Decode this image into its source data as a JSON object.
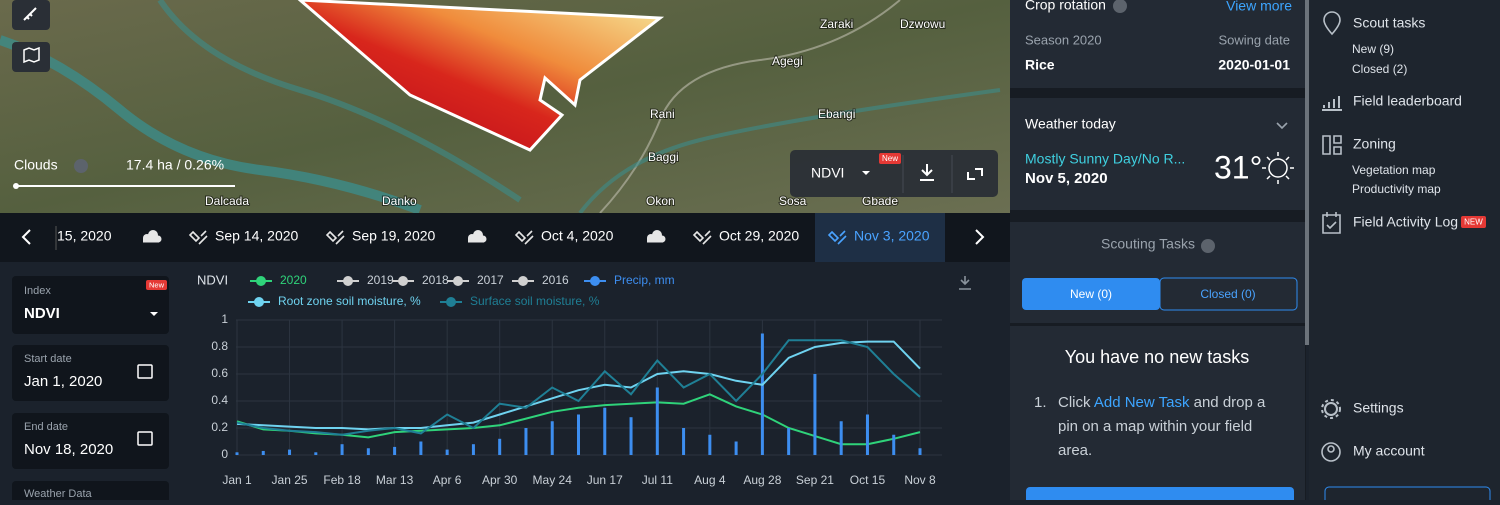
{
  "map": {
    "labels": [
      "Zaraki",
      "Dzwowu",
      "Agegi",
      "Rani",
      "Ebangi",
      "Baggi",
      "Okon",
      "Sosa",
      "Gbade",
      "Dalcada",
      "Danko"
    ],
    "clouds_label": "Clouds",
    "area": "17.4 ha / 0.26%",
    "layer": "NDVI",
    "layer_badge": "New"
  },
  "timeline": {
    "dates": [
      "15, 2020",
      "Sep 14, 2020",
      "Sep 19, 2020",
      "Oct 4, 2020",
      "Oct 29, 2020",
      "Nov 3, 2020"
    ]
  },
  "filters": {
    "index_label": "Index",
    "index_value": "NDVI",
    "index_badge": "New",
    "start_label": "Start date",
    "start_value": "Jan 1, 2020",
    "end_label": "End date",
    "end_value": "Nov 18, 2020",
    "weather_label": "Weather Data"
  },
  "chart_data": {
    "type": "combo",
    "title": "NDVI",
    "categories": [
      "Jan 1",
      null,
      "Jan 25",
      null,
      "Feb 18",
      null,
      "Mar 13",
      null,
      "Apr 6",
      null,
      "Apr 30",
      null,
      "May 24",
      null,
      "Jun 17",
      null,
      "Jul 11",
      null,
      "Aug 4",
      null,
      "Aug 28",
      null,
      "Sep 21",
      null,
      "Oct 15",
      null,
      "Nov 8"
    ],
    "ylim": [
      0,
      1
    ],
    "yticks": [
      0,
      0.2,
      0.4,
      0.6,
      0.8,
      1
    ],
    "grid": true,
    "series": [
      {
        "name": "2020",
        "type": "line",
        "color": "#2fd37a",
        "values": [
          0.25,
          0.19,
          0.18,
          0.16,
          0.15,
          0.13,
          0.17,
          0.18,
          0.19,
          0.2,
          0.22,
          0.27,
          0.32,
          0.35,
          0.37,
          0.38,
          0.39,
          0.38,
          0.45,
          0.36,
          0.3,
          0.2,
          0.14,
          0.08,
          0.08,
          0.12,
          0.17
        ]
      },
      {
        "name": "Precip, mm",
        "type": "bar",
        "color": "#3d8ef0",
        "values": [
          0.02,
          0.03,
          0.04,
          0.02,
          0.08,
          0.05,
          0.06,
          0.1,
          0.04,
          0.08,
          0.12,
          0.2,
          0.25,
          0.3,
          0.35,
          0.28,
          0.5,
          0.2,
          0.15,
          0.1,
          0.9,
          0.2,
          0.6,
          0.25,
          0.3,
          0.15,
          0.05
        ]
      },
      {
        "name": "Root zone soil moisture, %",
        "type": "line",
        "color": "#6fd3f0",
        "values": [
          0.23,
          0.22,
          0.21,
          0.2,
          0.2,
          0.19,
          0.2,
          0.2,
          0.22,
          0.24,
          0.3,
          0.36,
          0.42,
          0.48,
          0.52,
          0.5,
          0.6,
          0.62,
          0.6,
          0.55,
          0.52,
          0.72,
          0.8,
          0.83,
          0.84,
          0.84,
          0.64
        ]
      },
      {
        "name": "Surface soil moisture, %",
        "type": "line",
        "color": "#1f7f95",
        "values": [
          0.24,
          0.2,
          0.18,
          0.17,
          0.15,
          0.18,
          0.2,
          0.16,
          0.3,
          0.2,
          0.38,
          0.35,
          0.5,
          0.4,
          0.62,
          0.45,
          0.7,
          0.5,
          0.6,
          0.4,
          0.6,
          0.85,
          0.85,
          0.85,
          0.8,
          0.6,
          0.43
        ]
      }
    ],
    "disabled_series": [
      {
        "name": "2019",
        "color": "#d0d0d0"
      },
      {
        "name": "2018",
        "color": "#d0d0d0"
      },
      {
        "name": "2017",
        "color": "#d0d0d0"
      },
      {
        "name": "2016",
        "color": "#d0d0d0"
      }
    ]
  },
  "crop_rotation": {
    "title": "Crop rotation",
    "link": "View more",
    "season_label": "Season 2020",
    "sowing_label": "Sowing date",
    "crop": "Rice",
    "sowing_date": "2020-01-01"
  },
  "weather": {
    "title": "Weather today",
    "condition": "Mostly Sunny Day/No R...",
    "date": "Nov 5, 2020",
    "temperature": "31°"
  },
  "scouting": {
    "title": "Scouting Tasks",
    "tab_new": "New (0)",
    "tab_closed": "Closed (0)",
    "empty_title": "You have no new tasks",
    "step_number": "1.",
    "step_before": "Click ",
    "step_link": "Add New Task",
    "step_after": " and drop a pin on a map within your field area."
  },
  "sidebar": {
    "scout_tasks": "Scout tasks",
    "scout_new": "New (9)",
    "scout_closed": "Closed (2)",
    "leaderboard": "Field leaderboard",
    "zoning": "Zoning",
    "vegetation_map": "Vegetation map",
    "productivity_map": "Productivity map",
    "activity_log": "Field Activity Log",
    "activity_badge": "NEW",
    "settings": "Settings",
    "account": "My account"
  }
}
